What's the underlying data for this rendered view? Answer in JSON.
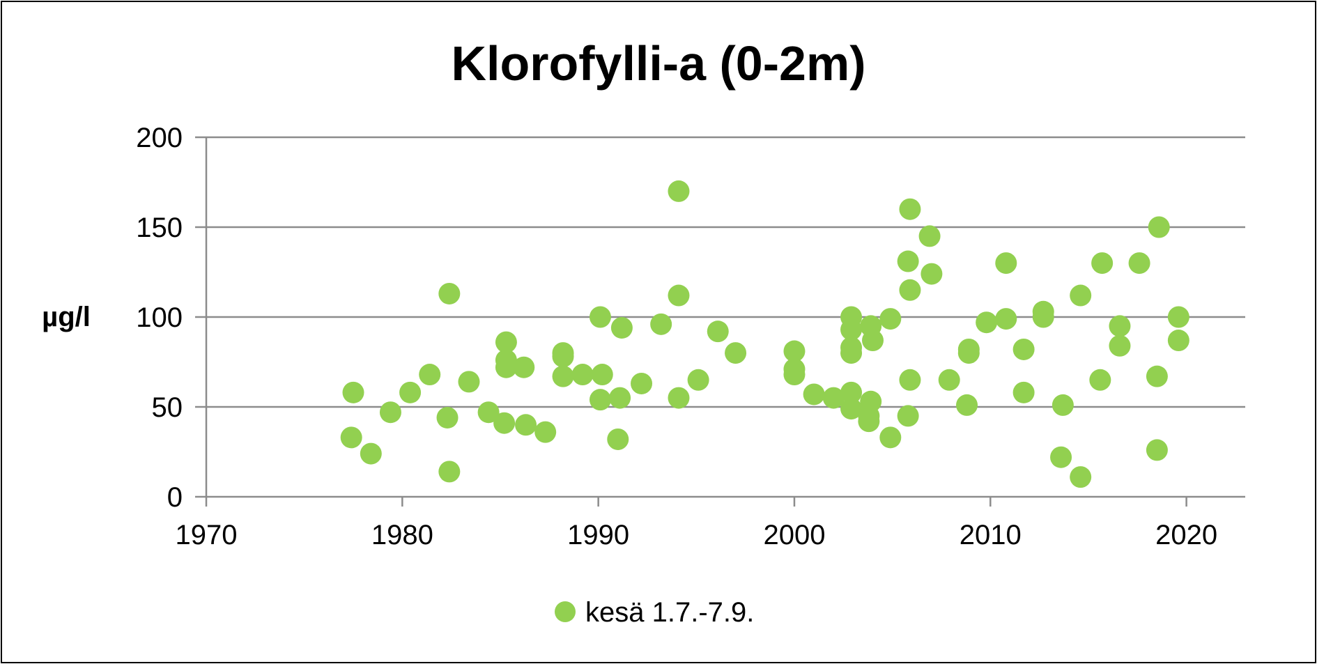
{
  "chart_data": {
    "type": "scatter",
    "title": "Klorofylli-a (0-2m)",
    "xlabel": "",
    "ylabel": "µg/l",
    "xlim": [
      1970,
      2023
    ],
    "ylim": [
      0,
      200
    ],
    "xticks": [
      1970,
      1980,
      1990,
      2000,
      2010,
      2020
    ],
    "yticks": [
      0,
      50,
      100,
      150,
      200
    ],
    "grid": "horizontal",
    "legend_position": "bottom",
    "series": [
      {
        "name": "kesä 1.7.-7.9.",
        "color": "#92d050",
        "points": [
          {
            "x": 1977.4,
            "y": 33
          },
          {
            "x": 1977.5,
            "y": 58
          },
          {
            "x": 1978.4,
            "y": 24
          },
          {
            "x": 1979.4,
            "y": 47
          },
          {
            "x": 1980.4,
            "y": 58
          },
          {
            "x": 1981.4,
            "y": 68
          },
          {
            "x": 1982.3,
            "y": 44
          },
          {
            "x": 1982.4,
            "y": 113
          },
          {
            "x": 1982.4,
            "y": 14
          },
          {
            "x": 1983.4,
            "y": 64
          },
          {
            "x": 1984.4,
            "y": 47
          },
          {
            "x": 1985.2,
            "y": 41
          },
          {
            "x": 1985.3,
            "y": 72
          },
          {
            "x": 1985.3,
            "y": 76
          },
          {
            "x": 1985.3,
            "y": 86
          },
          {
            "x": 1986.2,
            "y": 72
          },
          {
            "x": 1986.3,
            "y": 40
          },
          {
            "x": 1987.3,
            "y": 36
          },
          {
            "x": 1988.2,
            "y": 67
          },
          {
            "x": 1988.2,
            "y": 78
          },
          {
            "x": 1988.2,
            "y": 80
          },
          {
            "x": 1989.2,
            "y": 68
          },
          {
            "x": 1990.1,
            "y": 100
          },
          {
            "x": 1990.1,
            "y": 54
          },
          {
            "x": 1990.2,
            "y": 68
          },
          {
            "x": 1991.0,
            "y": 32
          },
          {
            "x": 1991.1,
            "y": 55
          },
          {
            "x": 1991.2,
            "y": 94
          },
          {
            "x": 1992.2,
            "y": 63
          },
          {
            "x": 1993.2,
            "y": 96
          },
          {
            "x": 1994.1,
            "y": 170
          },
          {
            "x": 1994.1,
            "y": 112
          },
          {
            "x": 1994.1,
            "y": 55
          },
          {
            "x": 1995.1,
            "y": 65
          },
          {
            "x": 1996.1,
            "y": 92
          },
          {
            "x": 1997.0,
            "y": 80
          },
          {
            "x": 2000.0,
            "y": 81
          },
          {
            "x": 2000.0,
            "y": 71
          },
          {
            "x": 2000.0,
            "y": 68
          },
          {
            "x": 2001.0,
            "y": 57
          },
          {
            "x": 2002.0,
            "y": 55
          },
          {
            "x": 2002.9,
            "y": 100
          },
          {
            "x": 2002.9,
            "y": 93
          },
          {
            "x": 2002.9,
            "y": 83
          },
          {
            "x": 2002.9,
            "y": 80
          },
          {
            "x": 2002.9,
            "y": 58
          },
          {
            "x": 2002.9,
            "y": 49
          },
          {
            "x": 2003.9,
            "y": 95
          },
          {
            "x": 2004.0,
            "y": 87
          },
          {
            "x": 2003.9,
            "y": 53
          },
          {
            "x": 2003.8,
            "y": 45
          },
          {
            "x": 2003.8,
            "y": 42
          },
          {
            "x": 2004.9,
            "y": 99
          },
          {
            "x": 2004.9,
            "y": 33
          },
          {
            "x": 2005.9,
            "y": 160
          },
          {
            "x": 2005.8,
            "y": 131
          },
          {
            "x": 2005.9,
            "y": 115
          },
          {
            "x": 2005.9,
            "y": 65
          },
          {
            "x": 2005.8,
            "y": 45
          },
          {
            "x": 2006.9,
            "y": 145
          },
          {
            "x": 2007.0,
            "y": 124
          },
          {
            "x": 2007.9,
            "y": 65
          },
          {
            "x": 2008.9,
            "y": 82
          },
          {
            "x": 2008.9,
            "y": 80
          },
          {
            "x": 2008.8,
            "y": 51
          },
          {
            "x": 2009.8,
            "y": 97
          },
          {
            "x": 2010.8,
            "y": 130
          },
          {
            "x": 2010.8,
            "y": 99
          },
          {
            "x": 2011.7,
            "y": 82
          },
          {
            "x": 2011.7,
            "y": 58
          },
          {
            "x": 2012.7,
            "y": 103
          },
          {
            "x": 2012.7,
            "y": 100
          },
          {
            "x": 2013.7,
            "y": 51
          },
          {
            "x": 2013.6,
            "y": 22
          },
          {
            "x": 2014.6,
            "y": 112
          },
          {
            "x": 2014.6,
            "y": 11
          },
          {
            "x": 2015.6,
            "y": 65
          },
          {
            "x": 2015.7,
            "y": 130
          },
          {
            "x": 2016.6,
            "y": 95
          },
          {
            "x": 2016.6,
            "y": 84
          },
          {
            "x": 2017.6,
            "y": 130
          },
          {
            "x": 2018.6,
            "y": 150
          },
          {
            "x": 2018.5,
            "y": 67
          },
          {
            "x": 2018.5,
            "y": 26
          },
          {
            "x": 2019.6,
            "y": 100
          },
          {
            "x": 2019.6,
            "y": 87
          }
        ]
      }
    ]
  }
}
